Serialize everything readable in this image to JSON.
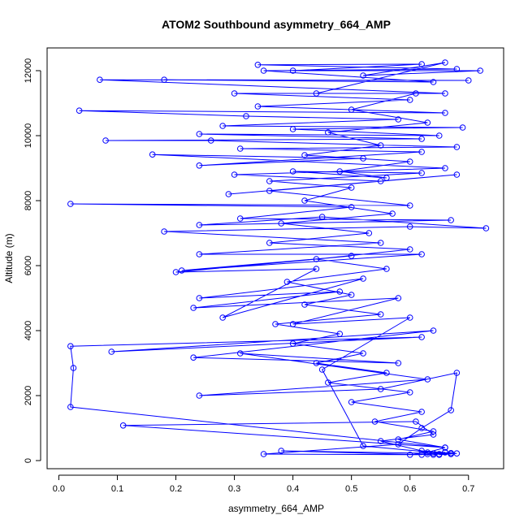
{
  "chart_data": {
    "type": "scatter",
    "title": "ATOM2 Southbound asymmetry_664_AMP",
    "xlabel": "asymmetry_664_AMP",
    "ylabel": "Altitude (m)",
    "xlim": [
      -0.02,
      0.76
    ],
    "ylim": [
      -250,
      12700
    ],
    "xticks": [
      0.0,
      0.1,
      0.2,
      0.3,
      0.4,
      0.5,
      0.6,
      0.7
    ],
    "xtick_labels": [
      "0.0",
      "0.1",
      "0.2",
      "0.3",
      "0.4",
      "0.5",
      "0.6",
      "0.7"
    ],
    "yticks": [
      0,
      2000,
      4000,
      6000,
      8000,
      10000,
      12000
    ],
    "ytick_labels": [
      "0",
      "2000",
      "4000",
      "6000",
      "8000",
      "10000",
      "12000"
    ],
    "grid": false,
    "legend": "none",
    "series": [
      {
        "color": "#0000ff",
        "marker": "open-circle",
        "line": true,
        "points": [
          [
            0.63,
            200
          ],
          [
            0.66,
            250
          ],
          [
            0.65,
            180
          ],
          [
            0.68,
            220
          ],
          [
            0.62,
            300
          ],
          [
            0.55,
            600
          ],
          [
            0.64,
            800
          ],
          [
            0.61,
            1200
          ],
          [
            0.11,
            1080
          ],
          [
            0.66,
            400
          ],
          [
            0.02,
            1650
          ],
          [
            0.025,
            2850
          ],
          [
            0.02,
            3520
          ],
          [
            0.62,
            3800
          ],
          [
            0.09,
            3350
          ],
          [
            0.64,
            4000
          ],
          [
            0.23,
            3170
          ],
          [
            0.58,
            3000
          ],
          [
            0.31,
            3300
          ],
          [
            0.63,
            2500
          ],
          [
            0.24,
            2000
          ],
          [
            0.55,
            2200
          ],
          [
            0.68,
            2700
          ],
          [
            0.67,
            1550
          ],
          [
            0.62,
            1000
          ],
          [
            0.58,
            500
          ],
          [
            0.35,
            200
          ],
          [
            0.62,
            180
          ],
          [
            0.38,
            300
          ],
          [
            0.64,
            220
          ],
          [
            0.67,
            200
          ],
          [
            0.52,
            450
          ],
          [
            0.45,
            2800
          ],
          [
            0.6,
            4400
          ],
          [
            0.4,
            4200
          ],
          [
            0.58,
            5000
          ],
          [
            0.23,
            4700
          ],
          [
            0.48,
            5200
          ],
          [
            0.24,
            5000
          ],
          [
            0.52,
            5600
          ],
          [
            0.28,
            4400
          ],
          [
            0.44,
            5900
          ],
          [
            0.2,
            5800
          ],
          [
            0.5,
            6300
          ],
          [
            0.21,
            5850
          ],
          [
            0.62,
            6350
          ],
          [
            0.24,
            6350
          ],
          [
            0.55,
            6700
          ],
          [
            0.18,
            7050
          ],
          [
            0.6,
            7200
          ],
          [
            0.73,
            7150
          ],
          [
            0.45,
            7500
          ],
          [
            0.24,
            7250
          ],
          [
            0.67,
            7400
          ],
          [
            0.31,
            7450
          ],
          [
            0.5,
            7800
          ],
          [
            0.02,
            7900
          ],
          [
            0.6,
            7850
          ],
          [
            0.36,
            8300
          ],
          [
            0.68,
            8800
          ],
          [
            0.29,
            8200
          ],
          [
            0.55,
            8600
          ],
          [
            0.3,
            8800
          ],
          [
            0.66,
            9000
          ],
          [
            0.16,
            9420
          ],
          [
            0.52,
            9300
          ],
          [
            0.24,
            9080
          ],
          [
            0.62,
            9500
          ],
          [
            0.31,
            9600
          ],
          [
            0.68,
            9650
          ],
          [
            0.26,
            9850
          ],
          [
            0.08,
            9850
          ],
          [
            0.62,
            9900
          ],
          [
            0.24,
            10050
          ],
          [
            0.65,
            10000
          ],
          [
            0.4,
            10200
          ],
          [
            0.69,
            10250
          ],
          [
            0.28,
            10300
          ],
          [
            0.58,
            10500
          ],
          [
            0.32,
            10600
          ],
          [
            0.035,
            10770
          ],
          [
            0.66,
            10700
          ],
          [
            0.34,
            10900
          ],
          [
            0.6,
            11100
          ],
          [
            0.3,
            11300
          ],
          [
            0.66,
            11300
          ],
          [
            0.07,
            11720
          ],
          [
            0.7,
            11700
          ],
          [
            0.18,
            11720
          ],
          [
            0.64,
            11650
          ],
          [
            0.35,
            12000
          ],
          [
            0.68,
            12050
          ],
          [
            0.34,
            12180
          ],
          [
            0.62,
            12200
          ],
          [
            0.4,
            12000
          ],
          [
            0.72,
            12000
          ],
          [
            0.52,
            11850
          ],
          [
            0.66,
            12250
          ],
          [
            0.44,
            11300
          ],
          [
            0.61,
            11300
          ],
          [
            0.5,
            10800
          ],
          [
            0.63,
            10400
          ],
          [
            0.46,
            10100
          ],
          [
            0.55,
            9700
          ],
          [
            0.42,
            9400
          ],
          [
            0.6,
            9200
          ],
          [
            0.48,
            8900
          ],
          [
            0.56,
            8700
          ],
          [
            0.4,
            8900
          ],
          [
            0.62,
            8850
          ],
          [
            0.36,
            8600
          ],
          [
            0.5,
            8400
          ],
          [
            0.42,
            8000
          ],
          [
            0.57,
            7600
          ],
          [
            0.38,
            7300
          ],
          [
            0.53,
            7000
          ],
          [
            0.36,
            6700
          ],
          [
            0.6,
            6500
          ],
          [
            0.44,
            6200
          ],
          [
            0.56,
            5900
          ],
          [
            0.39,
            5500
          ],
          [
            0.5,
            5100
          ],
          [
            0.42,
            4800
          ],
          [
            0.55,
            4500
          ],
          [
            0.37,
            4200
          ],
          [
            0.48,
            3900
          ],
          [
            0.4,
            3600
          ],
          [
            0.52,
            3300
          ],
          [
            0.44,
            3000
          ],
          [
            0.56,
            2700
          ],
          [
            0.46,
            2400
          ],
          [
            0.6,
            2100
          ],
          [
            0.5,
            1800
          ],
          [
            0.62,
            1500
          ],
          [
            0.54,
            1200
          ],
          [
            0.64,
            900
          ],
          [
            0.58,
            650
          ],
          [
            0.66,
            400
          ],
          [
            0.63,
            250
          ],
          [
            0.6,
            180
          ],
          [
            0.65,
            200
          ],
          [
            0.67,
            230
          ],
          [
            0.64,
            180
          ],
          [
            0.66,
            260
          ]
        ]
      }
    ]
  }
}
